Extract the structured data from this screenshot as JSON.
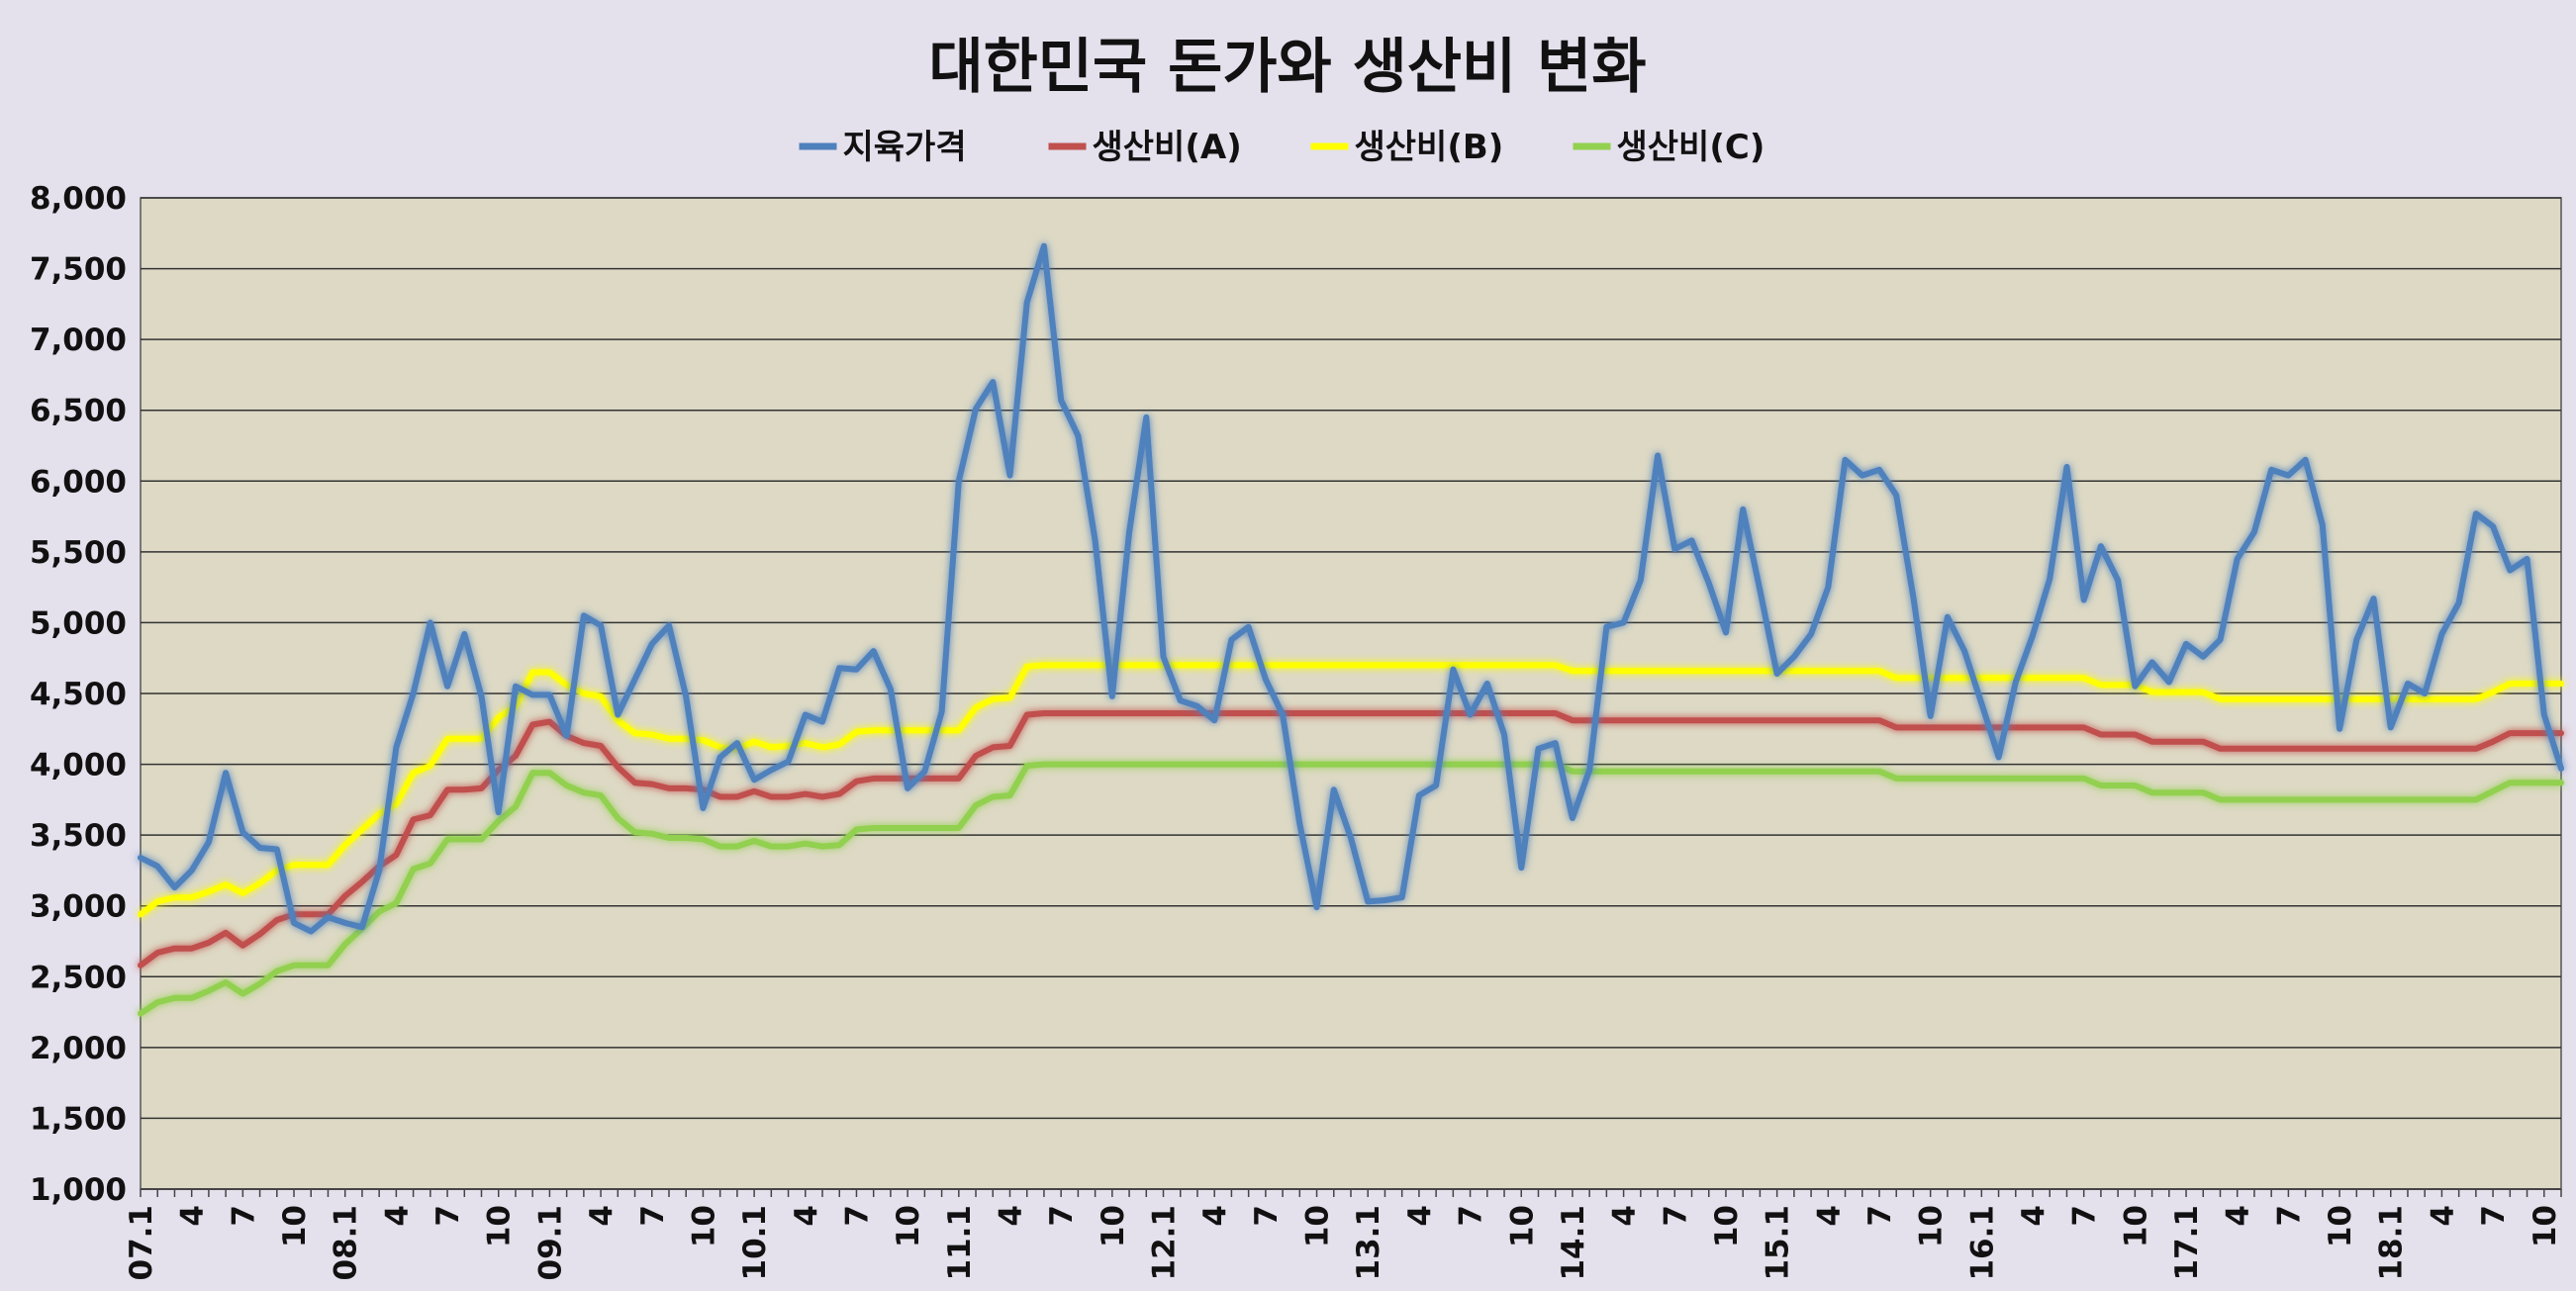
{
  "chart_data": {
    "type": "line",
    "title": "대한민국 돈가와 생산비 변화",
    "xlabel": "",
    "ylabel": "",
    "ylim": [
      1000,
      8000
    ],
    "ytick_step": 500,
    "y_tick_labels": [
      "1,000",
      "1,500",
      "2,000",
      "2,500",
      "3,000",
      "3,500",
      "4,000",
      "4,500",
      "5,000",
      "5,500",
      "6,000",
      "6,500",
      "7,000",
      "7,500",
      "8,000"
    ],
    "x_tick_labels": [
      "07.1",
      "4",
      "7",
      "10",
      "08.1",
      "4",
      "7",
      "10",
      "09.1",
      "4",
      "7",
      "10",
      "10.1",
      "4",
      "7",
      "10",
      "11.1",
      "4",
      "7",
      "10",
      "12.1",
      "4",
      "7",
      "10",
      "13.1",
      "4",
      "7",
      "10",
      "14.1",
      "4",
      "7",
      "10",
      "15.1",
      "4",
      "7",
      "10",
      "16.1",
      "4",
      "7",
      "10",
      "17.1",
      "4",
      "7",
      "10",
      "18.1",
      "4",
      "7",
      "10"
    ],
    "x_start": "2007-01",
    "grid": true,
    "legend_position": "top",
    "plot_background": "#ddd9c4",
    "gridline_color": "#333333",
    "series": [
      {
        "name": "지육가격",
        "color": "#4f81bd",
        "values": [
          3340,
          3280,
          3130,
          3250,
          3450,
          3940,
          3520,
          3410,
          3400,
          2880,
          2820,
          2920,
          2880,
          2850,
          3250,
          4120,
          4500,
          5000,
          4550,
          4920,
          4480,
          3660,
          4550,
          4490,
          4490,
          4200,
          5050,
          4980,
          4350,
          4600,
          4850,
          4980,
          4480,
          3690,
          4050,
          4150,
          3890,
          3960,
          4020,
          4350,
          4300,
          4680,
          4670,
          4800,
          4530,
          3830,
          3950,
          4370,
          6000,
          6510,
          6700,
          6040,
          7260,
          7660,
          6570,
          6320,
          5580,
          4480,
          5640,
          6450,
          4760,
          4450,
          4410,
          4310,
          4880,
          4970,
          4600,
          4350,
          3580,
          2990,
          3820,
          3480,
          3030,
          3040,
          3060,
          3780,
          3850,
          4670,
          4350,
          4570,
          4210,
          3270,
          4110,
          4150,
          3620,
          3960,
          4970,
          5000,
          5300,
          6180,
          5520,
          5580,
          5280,
          4930,
          5800,
          5230,
          4640,
          4760,
          4920,
          5250,
          6150,
          6040,
          6080,
          5900,
          5180,
          4340,
          5040,
          4800,
          4430,
          4050,
          4580,
          4910,
          5310,
          6100,
          5160,
          5540,
          5300,
          4550,
          4720,
          4580,
          4850,
          4760,
          4880,
          5450,
          5640,
          6080,
          6040,
          6150,
          5690,
          4250,
          4880,
          5170,
          4260,
          4570,
          4500,
          4920,
          5140,
          5770,
          5680,
          5370,
          5450,
          4350,
          3970
        ]
      },
      {
        "name": "생산비(A)",
        "color": "#c0504d",
        "values": [
          2580,
          2670,
          2700,
          2700,
          2740,
          2810,
          2720,
          2800,
          2900,
          2940,
          2940,
          2940,
          3070,
          3170,
          3280,
          3360,
          3610,
          3640,
          3820,
          3820,
          3830,
          3960,
          4060,
          4280,
          4300,
          4200,
          4150,
          4130,
          3980,
          3870,
          3860,
          3830,
          3830,
          3820,
          3770,
          3770,
          3810,
          3770,
          3770,
          3790,
          3770,
          3790,
          3880,
          3900,
          3900,
          3900,
          3900,
          3900,
          3900,
          4060,
          4120,
          4130,
          4350,
          4360,
          4360,
          4360,
          4360,
          4360,
          4360,
          4360,
          4360,
          4360,
          4360,
          4360,
          4360,
          4360,
          4360,
          4360,
          4360,
          4360,
          4360,
          4360,
          4360,
          4360,
          4360,
          4360,
          4360,
          4360,
          4360,
          4360,
          4360,
          4360,
          4360,
          4360,
          4310,
          4310,
          4310,
          4310,
          4310,
          4310,
          4310,
          4310,
          4310,
          4310,
          4310,
          4310,
          4310,
          4310,
          4310,
          4310,
          4310,
          4310,
          4310,
          4260,
          4260,
          4260,
          4260,
          4260,
          4260,
          4260,
          4260,
          4260,
          4260,
          4260,
          4260,
          4210,
          4210,
          4210,
          4160,
          4160,
          4160,
          4160,
          4110,
          4110,
          4110,
          4110,
          4110,
          4110,
          4110,
          4110,
          4110,
          4110,
          4110,
          4110,
          4110,
          4110,
          4110,
          4110,
          4160,
          4220,
          4220,
          4220,
          4220
        ]
      },
      {
        "name": "생산비(B)",
        "color": "#ffff00",
        "values": [
          2940,
          3030,
          3060,
          3060,
          3100,
          3150,
          3090,
          3160,
          3250,
          3290,
          3290,
          3290,
          3430,
          3540,
          3650,
          3720,
          3940,
          3990,
          4180,
          4180,
          4180,
          4330,
          4410,
          4650,
          4650,
          4560,
          4500,
          4480,
          4310,
          4220,
          4210,
          4180,
          4180,
          4170,
          4120,
          4110,
          4160,
          4120,
          4130,
          4150,
          4120,
          4140,
          4230,
          4240,
          4240,
          4240,
          4240,
          4240,
          4240,
          4400,
          4460,
          4470,
          4690,
          4700,
          4700,
          4700,
          4700,
          4700,
          4700,
          4700,
          4700,
          4700,
          4700,
          4700,
          4700,
          4700,
          4700,
          4700,
          4700,
          4700,
          4700,
          4700,
          4700,
          4700,
          4700,
          4700,
          4700,
          4700,
          4700,
          4700,
          4700,
          4700,
          4700,
          4700,
          4660,
          4660,
          4660,
          4660,
          4660,
          4660,
          4660,
          4660,
          4660,
          4660,
          4660,
          4660,
          4660,
          4660,
          4660,
          4660,
          4660,
          4660,
          4660,
          4610,
          4610,
          4610,
          4610,
          4610,
          4610,
          4610,
          4610,
          4610,
          4610,
          4610,
          4610,
          4560,
          4560,
          4560,
          4510,
          4510,
          4510,
          4510,
          4460,
          4460,
          4460,
          4460,
          4460,
          4460,
          4460,
          4460,
          4460,
          4460,
          4460,
          4460,
          4460,
          4460,
          4460,
          4460,
          4510,
          4570,
          4570,
          4570,
          4570
        ]
      },
      {
        "name": "생산비(C)",
        "color": "#92d050",
        "values": [
          2240,
          2320,
          2350,
          2350,
          2400,
          2460,
          2380,
          2450,
          2540,
          2580,
          2580,
          2580,
          2730,
          2840,
          2960,
          3020,
          3260,
          3300,
          3470,
          3470,
          3470,
          3600,
          3700,
          3940,
          3940,
          3850,
          3800,
          3780,
          3620,
          3520,
          3510,
          3480,
          3480,
          3470,
          3420,
          3420,
          3460,
          3420,
          3420,
          3440,
          3420,
          3430,
          3540,
          3550,
          3550,
          3550,
          3550,
          3550,
          3550,
          3710,
          3770,
          3780,
          3990,
          4000,
          4000,
          4000,
          4000,
          4000,
          4000,
          4000,
          4000,
          4000,
          4000,
          4000,
          4000,
          4000,
          4000,
          4000,
          4000,
          4000,
          4000,
          4000,
          4000,
          4000,
          4000,
          4000,
          4000,
          4000,
          4000,
          4000,
          4000,
          4000,
          4000,
          4000,
          3950,
          3950,
          3950,
          3950,
          3950,
          3950,
          3950,
          3950,
          3950,
          3950,
          3950,
          3950,
          3950,
          3950,
          3950,
          3950,
          3950,
          3950,
          3950,
          3900,
          3900,
          3900,
          3900,
          3900,
          3900,
          3900,
          3900,
          3900,
          3900,
          3900,
          3900,
          3850,
          3850,
          3850,
          3800,
          3800,
          3800,
          3800,
          3750,
          3750,
          3750,
          3750,
          3750,
          3750,
          3750,
          3750,
          3750,
          3750,
          3750,
          3750,
          3750,
          3750,
          3750,
          3750,
          3810,
          3870,
          3870,
          3870,
          3870
        ]
      }
    ]
  }
}
